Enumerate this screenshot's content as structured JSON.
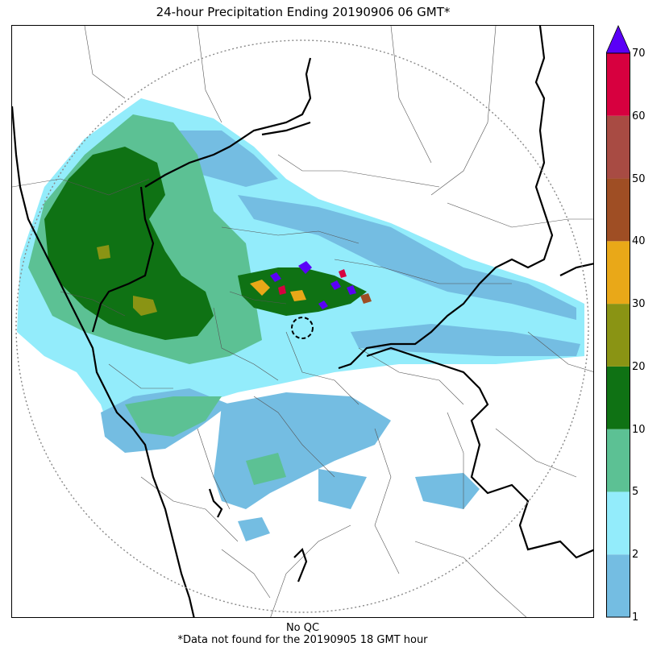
{
  "title": "24-hour Precipitation Ending 20190906 06 GMT*",
  "footnote": {
    "qc": "No QC",
    "missing": "*Data not found for the 20190905 18 GMT hour"
  },
  "colorbar": {
    "boundaries": [
      1,
      2,
      5,
      10,
      20,
      30,
      40,
      50,
      60,
      70
    ],
    "tick_labels": [
      "1",
      "2",
      "5",
      "10",
      "20",
      "30",
      "40",
      "50",
      "60",
      "70"
    ],
    "colors": [
      "#74bde2",
      "#93ecfb",
      "#5cc194",
      "#0f7214",
      "#8a9414",
      "#e9a818",
      "#9f4e24",
      "#a84b43",
      "#d7003f"
    ],
    "extend_max_color": "#5a00f7"
  },
  "map": {
    "radar_range_ring": "dotted",
    "radar_site_marker": "dashed-circle"
  }
}
